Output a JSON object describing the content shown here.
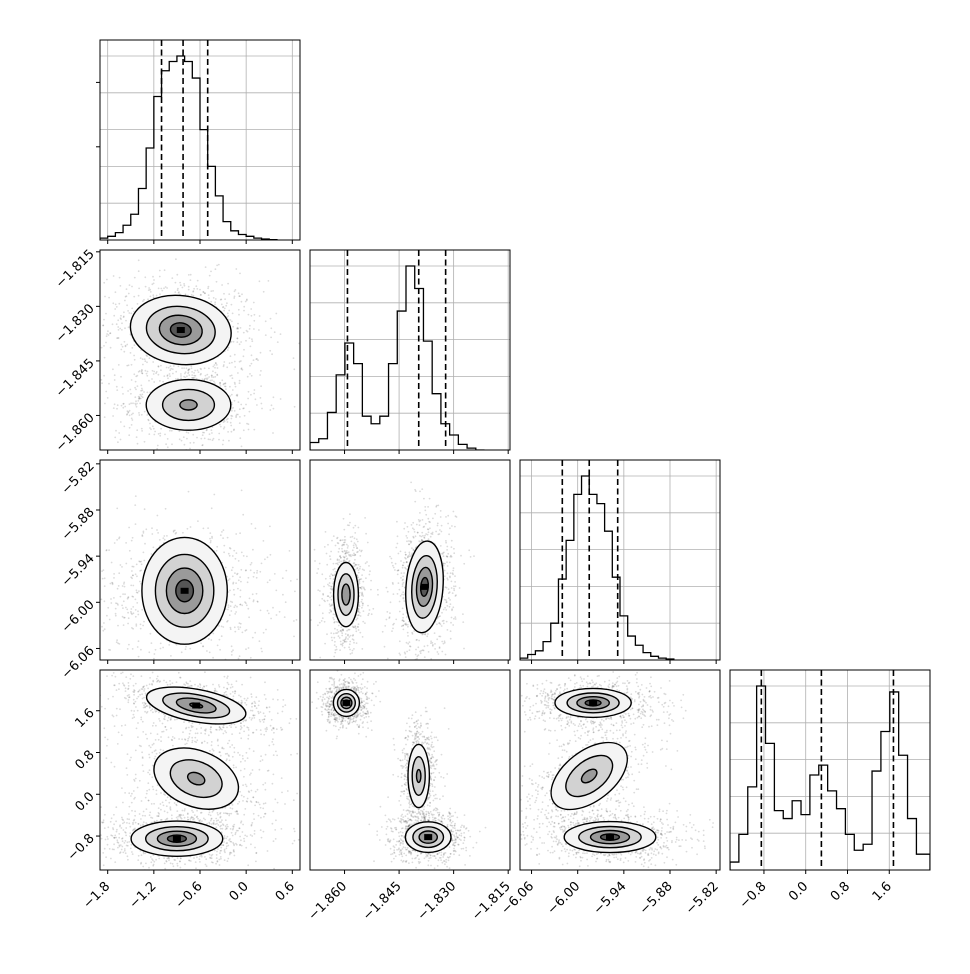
{
  "chart_data": {
    "type": "corner",
    "parameters": [
      {
        "index": 0,
        "ticks": [
          "−1.8",
          "−1.2",
          "−0.6",
          "0.0",
          "0.6"
        ],
        "tick_values": [
          -1.8,
          -1.2,
          -0.6,
          0.0,
          0.6
        ],
        "range": [
          -1.9,
          0.7
        ]
      },
      {
        "index": 1,
        "ticks": [
          "−1.860",
          "−1.845",
          "−1.830",
          "−1.815"
        ],
        "tick_values": [
          -1.86,
          -1.845,
          -1.83,
          -1.815
        ],
        "range": [
          -1.8695,
          -1.8145
        ]
      },
      {
        "index": 2,
        "ticks": [
          "−6.06",
          "−6.00",
          "−5.94",
          "−5.88",
          "−5.82"
        ],
        "tick_values": [
          -6.06,
          -6.0,
          -5.94,
          -5.88,
          -5.82
        ],
        "range": [
          -6.075,
          -5.815
        ]
      },
      {
        "index": 3,
        "ticks": [
          "−0.8",
          "0.0",
          "0.8",
          "1.6"
        ],
        "tick_values": [
          -0.8,
          0.0,
          0.8,
          1.6
        ],
        "range": [
          -1.45,
          2.38
        ]
      }
    ],
    "histograms": [
      {
        "param": 0,
        "quantiles": [
          -1.1,
          -0.82,
          -0.5
        ],
        "bins_x": [
          -1.9,
          -1.8,
          -1.7,
          -1.6,
          -1.5,
          -1.4,
          -1.3,
          -1.2,
          -1.1,
          -1.0,
          -0.9,
          -0.8,
          -0.7,
          -0.6,
          -0.5,
          -0.4,
          -0.3,
          -0.2,
          -0.1,
          0.0,
          0.1,
          0.2,
          0.3,
          0.4
        ],
        "counts": [
          1,
          2,
          4,
          8,
          14,
          28,
          50,
          78,
          92,
          97,
          100,
          97,
          88,
          60,
          40,
          24,
          10,
          5,
          3,
          2,
          1,
          0.5,
          0.2
        ]
      },
      {
        "param": 1,
        "quantiles": [
          -1.8592,
          -1.8396,
          -1.8322
        ],
        "bins_x": [
          -1.8695,
          -1.8671,
          -1.8647,
          -1.8623,
          -1.8599,
          -1.8575,
          -1.8551,
          -1.8527,
          -1.8503,
          -1.8479,
          -1.8455,
          -1.8431,
          -1.8407,
          -1.8383,
          -1.8359,
          -1.8335,
          -1.8311,
          -1.8287,
          -1.8263,
          -1.8239,
          -1.8215
        ],
        "counts": [
          4,
          6,
          20,
          40,
          57,
          46,
          18,
          14,
          18,
          46,
          74,
          98,
          86,
          58,
          30,
          14,
          8,
          3,
          1,
          0
        ]
      },
      {
        "param": 2,
        "quantiles": [
          -6.02,
          -5.985,
          -5.948
        ],
        "bins_x": [
          -6.075,
          -6.065,
          -6.055,
          -6.045,
          -6.035,
          -6.025,
          -6.015,
          -6.005,
          -5.995,
          -5.985,
          -5.975,
          -5.965,
          -5.955,
          -5.945,
          -5.935,
          -5.925,
          -5.915,
          -5.905,
          -5.895,
          -5.885,
          -5.875
        ],
        "counts": [
          1,
          3,
          5,
          10,
          20,
          44,
          65,
          90,
          100,
          90,
          85,
          70,
          45,
          24,
          13,
          8,
          4,
          2,
          1,
          0.5
        ]
      },
      {
        "param": 3,
        "quantiles": [
          -0.85,
          0.3,
          1.68
        ],
        "bins_x": [
          -1.45,
          -1.28,
          -1.11,
          -0.94,
          -0.77,
          -0.6,
          -0.43,
          -0.26,
          -0.09,
          0.08,
          0.25,
          0.42,
          0.59,
          0.76,
          0.93,
          1.1,
          1.27,
          1.44,
          1.61,
          1.78,
          1.95,
          2.12,
          2.38
        ],
        "counts": [
          4,
          18,
          42,
          93,
          64,
          30,
          26,
          35,
          28,
          48,
          53,
          40,
          31,
          18,
          10,
          13,
          50,
          70,
          90,
          58,
          26,
          8
        ]
      }
    ],
    "pairs": [
      {
        "x_param": 0,
        "y_param": 1,
        "modes": [
          {
            "cx": -0.85,
            "cy": -1.8365,
            "sx": 0.33,
            "sy": 0.0048,
            "rho": -0.1,
            "peak": 1.0
          },
          {
            "cx": -0.75,
            "cy": -1.8571,
            "sx": 0.3,
            "sy": 0.0038,
            "rho": 0.0,
            "peak": 0.75
          }
        ]
      },
      {
        "x_param": 0,
        "y_param": 2,
        "modes": [
          {
            "cx": -0.8,
            "cy": -5.985,
            "sx": 0.35,
            "sy": 0.028,
            "rho": 0.0,
            "peak": 1.0
          }
        ]
      },
      {
        "x_param": 1,
        "y_param": 2,
        "modes": [
          {
            "cx": -1.8596,
            "cy": -5.99,
            "sx": 0.0018,
            "sy": 0.022,
            "rho": 0.0,
            "peak": 0.85
          },
          {
            "cx": -1.838,
            "cy": -5.98,
            "sx": 0.0026,
            "sy": 0.03,
            "rho": 0.15,
            "peak": 1.0
          }
        ]
      },
      {
        "x_param": 0,
        "y_param": 3,
        "modes": [
          {
            "cx": -0.65,
            "cy": 1.7,
            "sx": 0.33,
            "sy": 0.18,
            "rho": -0.45,
            "peak": 0.95
          },
          {
            "cx": -0.65,
            "cy": 0.3,
            "sx": 0.3,
            "sy": 0.32,
            "rho": -0.3,
            "peak": 0.75
          },
          {
            "cx": -0.9,
            "cy": -0.85,
            "sx": 0.3,
            "sy": 0.17,
            "rho": 0.0,
            "peak": 1.0
          }
        ]
      },
      {
        "x_param": 1,
        "y_param": 3,
        "modes": [
          {
            "cx": -1.8595,
            "cy": 1.75,
            "sx": 0.0018,
            "sy": 0.13,
            "rho": 0.0,
            "peak": 1.0
          },
          {
            "cx": -1.8396,
            "cy": 0.35,
            "sx": 0.0016,
            "sy": 0.33,
            "rho": 0.0,
            "peak": 0.75
          },
          {
            "cx": -1.837,
            "cy": -0.82,
            "sx": 0.0032,
            "sy": 0.15,
            "rho": 0.0,
            "peak": 0.95
          }
        ]
      },
      {
        "x_param": 2,
        "y_param": 3,
        "modes": [
          {
            "cx": -5.98,
            "cy": 1.75,
            "sx": 0.025,
            "sy": 0.14,
            "rho": 0.0,
            "peak": 1.0
          },
          {
            "cx": -5.985,
            "cy": 0.35,
            "sx": 0.027,
            "sy": 0.35,
            "rho": 0.5,
            "peak": 0.75
          },
          {
            "cx": -5.958,
            "cy": -0.82,
            "sx": 0.03,
            "sy": 0.15,
            "rho": 0.0,
            "peak": 1.0
          }
        ]
      }
    ],
    "grid": true,
    "title": "",
    "xlabel": "",
    "ylabel": ""
  }
}
